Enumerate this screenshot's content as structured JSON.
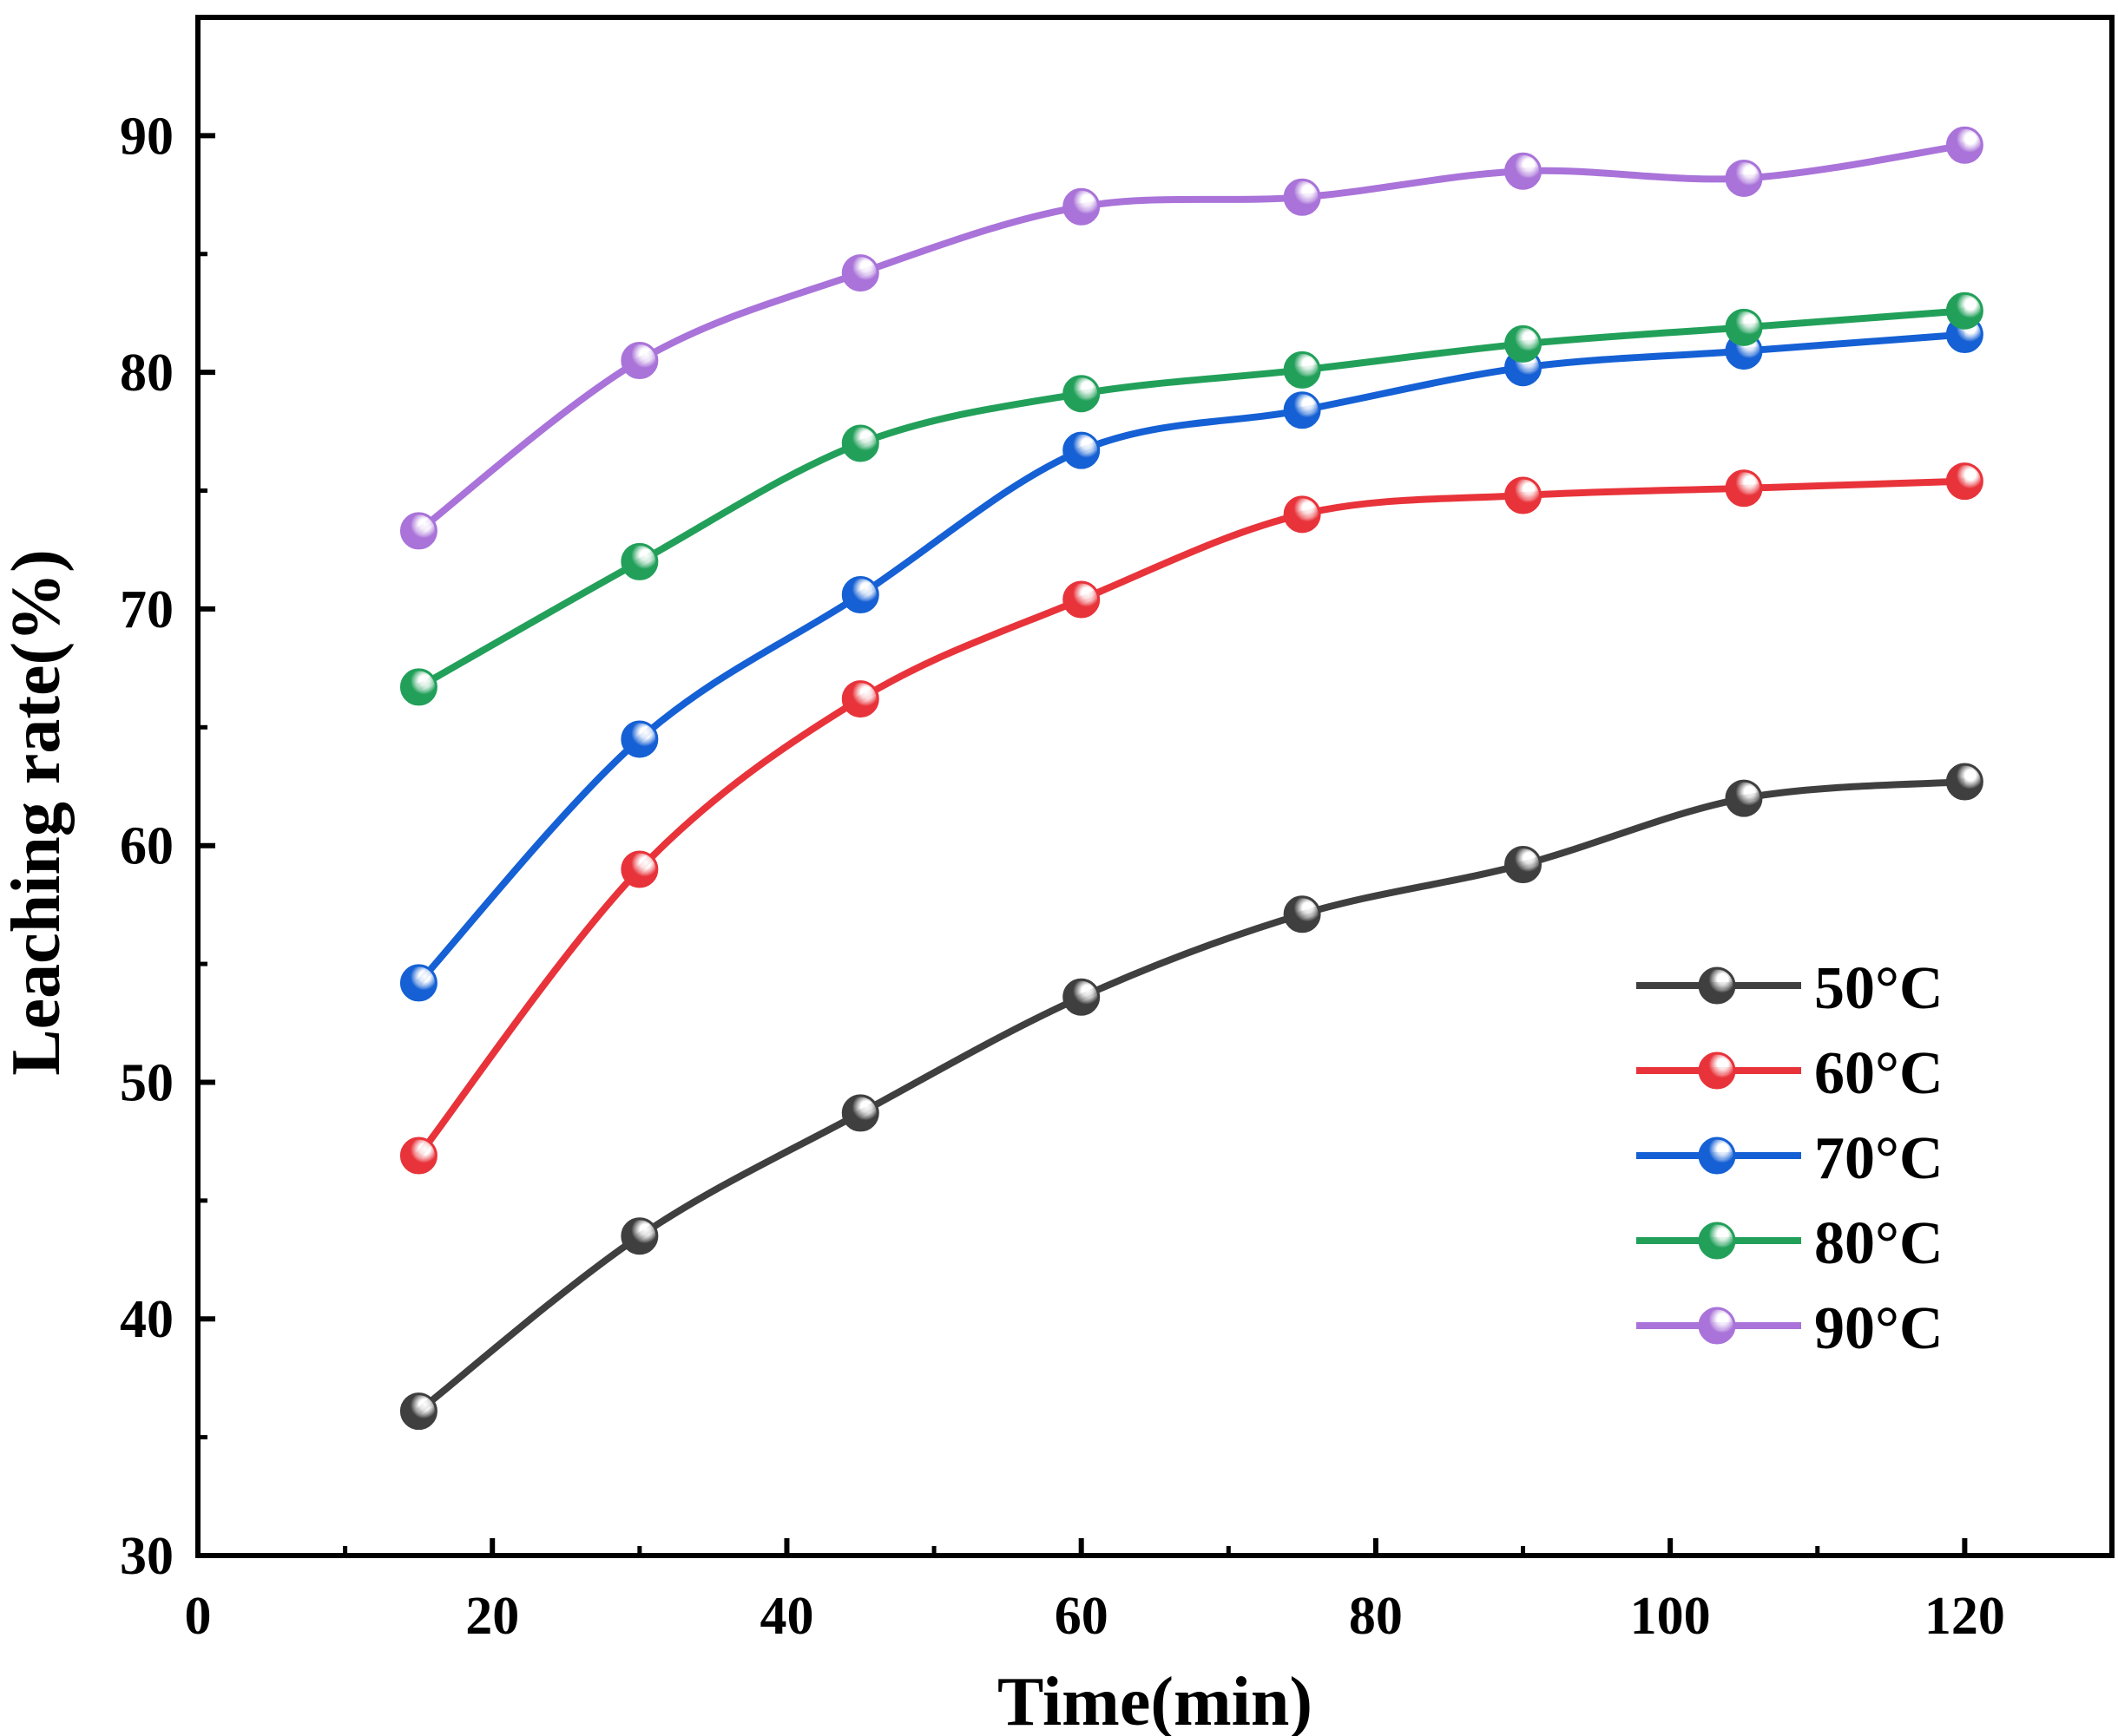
{
  "chart_data": {
    "type": "line",
    "title": "",
    "xlabel": "Time(min)",
    "ylabel": "Leaching rate(%)",
    "xlim": [
      0,
      130
    ],
    "ylim": [
      30,
      95
    ],
    "xticks": [
      0,
      20,
      40,
      60,
      80,
      100,
      120
    ],
    "yticks": [
      30,
      40,
      50,
      60,
      70,
      80,
      90
    ],
    "grid": false,
    "legend_position": "bottom-right",
    "x": [
      15,
      30,
      45,
      60,
      75,
      90,
      105,
      120
    ],
    "series": [
      {
        "name": "50°C",
        "color": "#3f3f3f",
        "values": [
          36.1,
          43.5,
          48.7,
          53.6,
          57.1,
          59.2,
          62.0,
          62.7
        ]
      },
      {
        "name": "60°C",
        "color": "#e8333a",
        "values": [
          46.9,
          59.0,
          66.2,
          70.4,
          74.0,
          74.8,
          75.1,
          75.4
        ]
      },
      {
        "name": "70°C",
        "color": "#1560d4",
        "values": [
          54.2,
          64.5,
          70.6,
          76.7,
          78.4,
          80.2,
          80.9,
          81.6
        ]
      },
      {
        "name": "80°C",
        "color": "#22a05a",
        "values": [
          66.7,
          72.0,
          77.0,
          79.1,
          80.1,
          81.2,
          81.9,
          82.6
        ]
      },
      {
        "name": "90°C",
        "color": "#a973d9",
        "values": [
          73.3,
          80.5,
          84.2,
          87.0,
          87.4,
          88.5,
          88.2,
          89.6
        ]
      }
    ]
  }
}
